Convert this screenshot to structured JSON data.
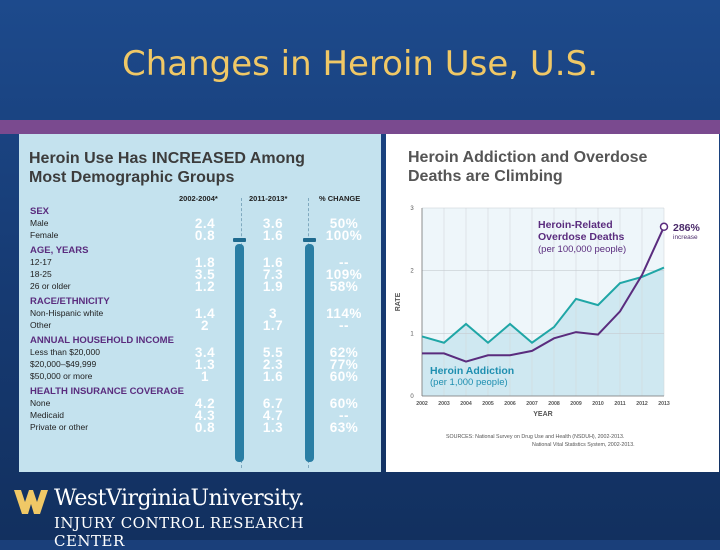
{
  "slide": {
    "title": "Changes in Heroin Use, U.S."
  },
  "left_panel": {
    "title_line1": "Heroin Use Has INCREASED Among",
    "title_line2": "Most Demographic Groups",
    "columns": [
      "2002-2004*",
      "2011-2013*",
      "% CHANGE"
    ],
    "sections": [
      {
        "name": "SEX",
        "rows": [
          {
            "label": "Male",
            "v1": "2.4",
            "v2": "3.6",
            "change": "50%"
          },
          {
            "label": "Female",
            "v1": "0.8",
            "v2": "1.6",
            "change": "100%"
          }
        ]
      },
      {
        "name": "AGE, YEARS",
        "rows": [
          {
            "label": "12-17",
            "v1": "1.8",
            "v2": "1.6",
            "change": "--"
          },
          {
            "label": "18-25",
            "v1": "3.5",
            "v2": "7.3",
            "change": "109%"
          },
          {
            "label": "26 or older",
            "v1": "1.2",
            "v2": "1.9",
            "change": "58%"
          }
        ]
      },
      {
        "name": "RACE/ETHNICITY",
        "rows": [
          {
            "label": "Non-Hispanic white",
            "v1": "1.4",
            "v2": "3",
            "change": "114%"
          },
          {
            "label": "Other",
            "v1": "2",
            "v2": "1.7",
            "change": "--"
          }
        ]
      },
      {
        "name": "ANNUAL HOUSEHOLD INCOME",
        "rows": [
          {
            "label": "Less than $20,000",
            "v1": "3.4",
            "v2": "5.5",
            "change": "62%"
          },
          {
            "label": "$20,000–$49,999",
            "v1": "1.3",
            "v2": "2.3",
            "change": "77%"
          },
          {
            "label": "$50,000 or more",
            "v1": "1",
            "v2": "1.6",
            "change": "60%"
          }
        ]
      },
      {
        "name": "HEALTH INSURANCE COVERAGE",
        "rows": [
          {
            "label": "None",
            "v1": "4.2",
            "v2": "6.7",
            "change": "60%"
          },
          {
            "label": "Medicaid",
            "v1": "4.3",
            "v2": "4.7",
            "change": "--"
          },
          {
            "label": "Private or other",
            "v1": "0.8",
            "v2": "1.3",
            "change": "63%"
          }
        ]
      }
    ]
  },
  "chart_data": {
    "type": "line",
    "title_line1": "Heroin Addiction and Overdose",
    "title_line2": "Deaths are Climbing",
    "xlabel": "YEAR",
    "ylabel": "RATE",
    "x": [
      2002,
      2003,
      2004,
      2005,
      2006,
      2007,
      2008,
      2009,
      2010,
      2011,
      2012,
      2013
    ],
    "ylim": [
      0,
      3
    ],
    "yticks": [
      0,
      1,
      2,
      3
    ],
    "grid": true,
    "series": [
      {
        "name": "Heroin Addiction",
        "name_sub": "(per 1,000 people)",
        "color": "#1fa6a6",
        "values": [
          0.95,
          0.85,
          1.15,
          0.85,
          1.15,
          0.85,
          1.1,
          1.55,
          1.45,
          1.8,
          1.9,
          2.05
        ]
      },
      {
        "name_line1": "Heroin-Related",
        "name_line2": "Overdose Deaths",
        "name_sub": "(per 100,000 people)",
        "color": "#5a2c7e",
        "values": [
          0.68,
          0.68,
          0.55,
          0.65,
          0.65,
          0.72,
          0.92,
          1.02,
          0.98,
          1.35,
          1.93,
          2.7
        ]
      }
    ],
    "annotation": {
      "value": "286%",
      "text": "increase"
    },
    "sources_line1": "SOURCES: National Survey on Drug Use and Health (NSDUH), 2002-2013.",
    "sources_line2": "National Vital Statistics System, 2002-2013."
  },
  "footer": {
    "university": "WestVirginiaUniversity.",
    "center": "INJURY CONTROL RESEARCH CENTER",
    "logo_color": "#f0c866"
  }
}
